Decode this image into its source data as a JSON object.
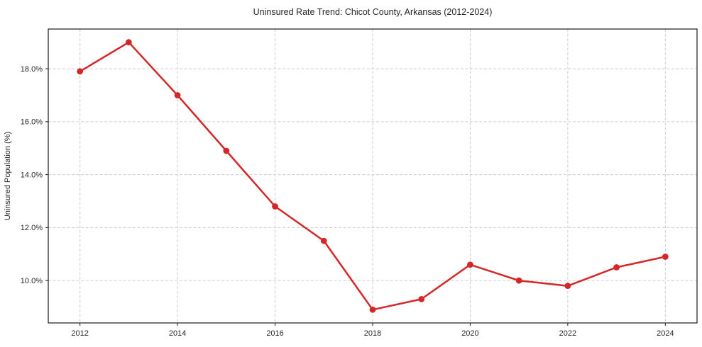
{
  "figure": {
    "background": "#ffffff"
  },
  "chart_data": {
    "type": "line",
    "title": "Uninsured Rate Trend: Chicot County, Arkansas (2012-2024)",
    "xlabel": "",
    "ylabel": "Uninsured Population (%)",
    "x": [
      2012,
      2013,
      2014,
      2015,
      2016,
      2017,
      2018,
      2019,
      2020,
      2021,
      2022,
      2023,
      2024
    ],
    "values": [
      17.9,
      19.0,
      17.0,
      14.9,
      12.8,
      11.5,
      8.9,
      9.3,
      10.6,
      10.0,
      9.8,
      10.5,
      10.9
    ],
    "xticks": [
      2012,
      2014,
      2016,
      2018,
      2020,
      2022,
      2024
    ],
    "xtick_labels": [
      "2012",
      "2014",
      "2016",
      "2018",
      "2020",
      "2022",
      "2024"
    ],
    "yticks": [
      10.0,
      12.0,
      14.0,
      16.0,
      18.0
    ],
    "ytick_labels": [
      "10.0%",
      "12.0%",
      "14.0%",
      "16.0%",
      "18.0%"
    ],
    "xlim": [
      2011.35,
      2024.65
    ],
    "ylim": [
      8.4,
      19.5
    ],
    "grid": true,
    "grid_style": "dashed",
    "legend": "none",
    "line_color": "#d62728",
    "marker": "circle",
    "grid_color": "#cccccc",
    "axis_color": "#1a1a1a",
    "text_color": "#262626"
  }
}
